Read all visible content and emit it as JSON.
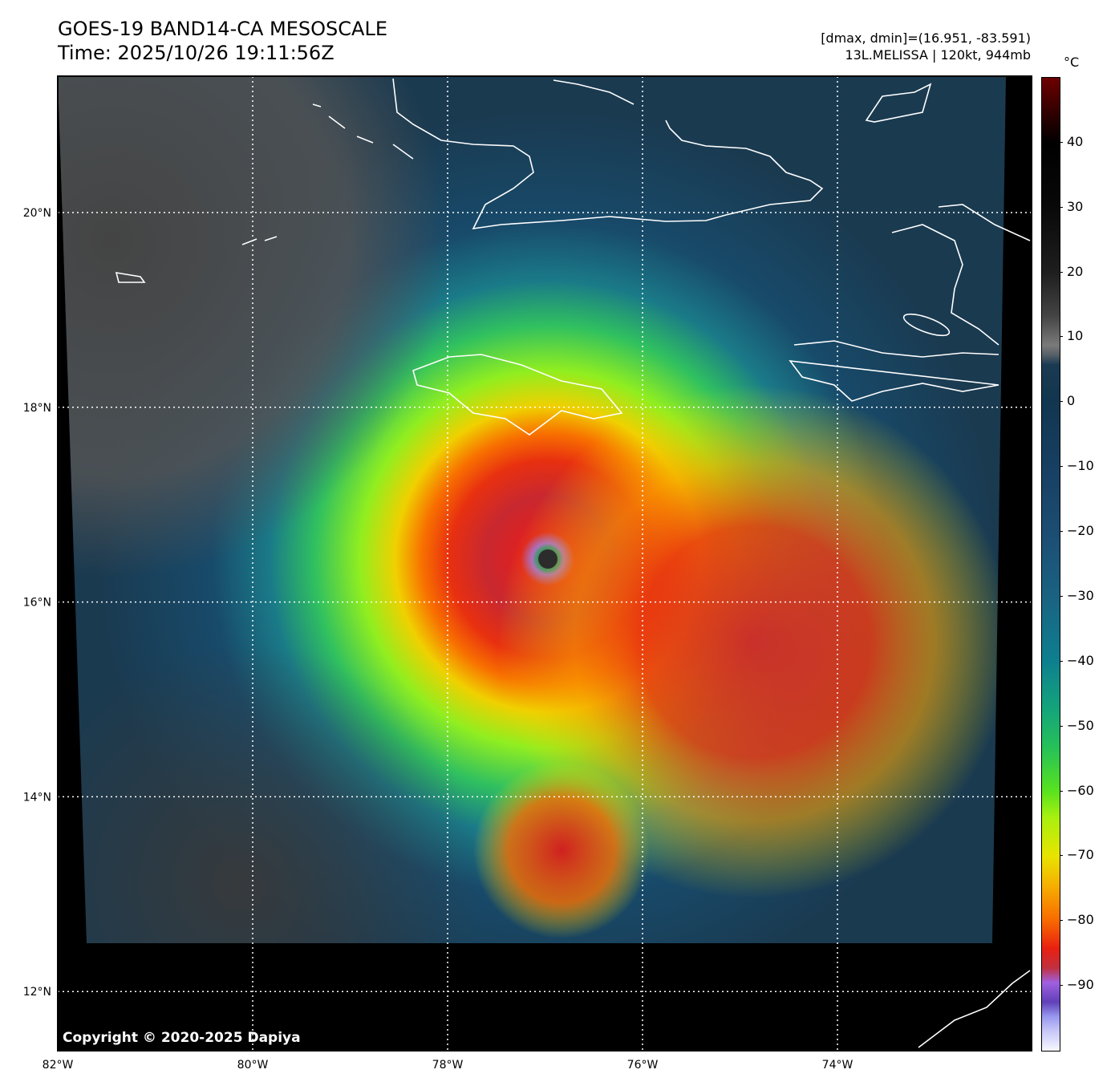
{
  "header": {
    "title": "GOES-19 BAND14-CA MESOSCALE",
    "time": "Time: 2025/10/26 19:11:56Z",
    "stats": "[dmax, dmin]=(16.951, -83.591)",
    "storm": "13L.MELISSA | 120kt, 944mb"
  },
  "map": {
    "lon_ticks": [
      "82°W",
      "80°W",
      "78°W",
      "76°W",
      "74°W"
    ],
    "lon_values": [
      -82,
      -80,
      -78,
      -76,
      -74
    ],
    "lat_ticks": [
      "20°N",
      "18°N",
      "16°N",
      "14°N",
      "12°N"
    ],
    "lat_values": [
      20,
      18,
      16,
      14,
      12
    ],
    "storm_center": {
      "lat": 16.5,
      "lon": -76.95
    },
    "copyright": "Copyright © 2020-2025 Dapiya"
  },
  "colorbar": {
    "unit": "°C",
    "labels": [
      "40",
      "30",
      "20",
      "10",
      "0",
      "−10",
      "−20",
      "−30",
      "−40",
      "−50",
      "−60",
      "−70",
      "−80",
      "−90"
    ],
    "values": [
      40,
      30,
      20,
      10,
      0,
      -10,
      -20,
      -30,
      -40,
      -50,
      -60,
      -70,
      -80,
      -90
    ],
    "range": [
      -100,
      50
    ]
  }
}
